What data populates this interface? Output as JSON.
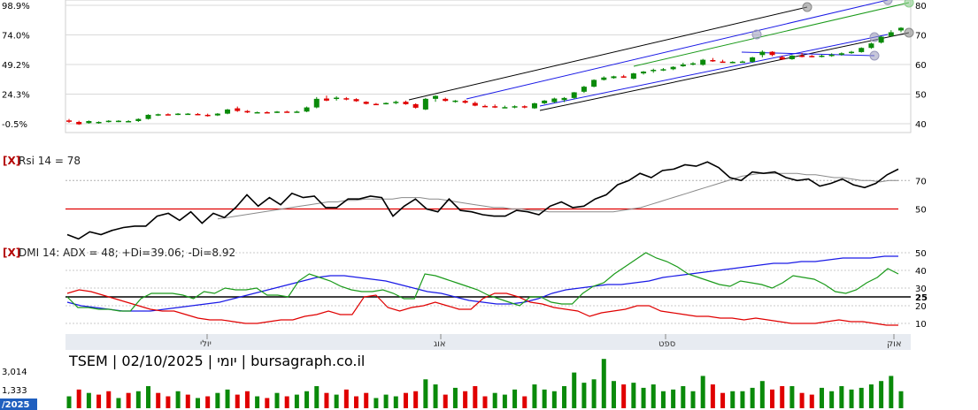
{
  "chart_data": [
    {
      "type": "candlestick",
      "title": "",
      "left_ticks": [
        "98.9%",
        "74.0%",
        "49.2%",
        "24.3%",
        "-0.5%"
      ],
      "right_ticks": [
        80,
        70,
        60,
        50,
        40
      ],
      "ylim": [
        38,
        82
      ],
      "candles": [
        [
          41.1,
          41.6,
          40.3,
          40.8
        ],
        [
          40.6,
          41.0,
          39.6,
          39.8
        ],
        [
          40.2,
          41.1,
          40.0,
          40.9
        ],
        [
          40.4,
          40.8,
          40.0,
          40.6
        ],
        [
          40.6,
          41.2,
          40.4,
          41.0
        ],
        [
          40.8,
          41.2,
          40.5,
          41.0
        ],
        [
          40.8,
          41.2,
          40.6,
          40.9
        ],
        [
          40.9,
          41.8,
          40.6,
          41.6
        ],
        [
          41.6,
          43.2,
          41.4,
          43.0
        ],
        [
          43.0,
          43.4,
          42.6,
          43.2
        ],
        [
          43.2,
          43.5,
          42.9,
          43.1
        ],
        [
          43.2,
          43.6,
          42.9,
          43.4
        ],
        [
          43.3,
          43.6,
          43.0,
          43.4
        ],
        [
          43.3,
          43.6,
          42.9,
          43.1
        ],
        [
          43.0,
          43.4,
          42.4,
          42.8
        ],
        [
          42.8,
          43.6,
          42.6,
          43.4
        ],
        [
          43.4,
          45.0,
          43.2,
          44.8
        ],
        [
          45.2,
          45.8,
          44.0,
          44.3
        ],
        [
          44.3,
          44.6,
          43.6,
          43.8
        ],
        [
          43.8,
          44.1,
          43.6,
          43.9
        ],
        [
          43.9,
          44.2,
          43.6,
          43.8
        ],
        [
          43.8,
          44.3,
          43.6,
          44.1
        ],
        [
          44.1,
          44.4,
          43.8,
          44.0
        ],
        [
          44.0,
          44.4,
          43.7,
          44.1
        ],
        [
          44.1,
          45.8,
          43.9,
          45.5
        ],
        [
          45.5,
          49.0,
          45.2,
          48.4
        ],
        [
          48.5,
          49.5,
          47.6,
          47.8
        ],
        [
          48.4,
          49.3,
          47.8,
          48.8
        ],
        [
          48.6,
          49.0,
          47.9,
          48.3
        ],
        [
          48.3,
          48.6,
          47.4,
          47.6
        ],
        [
          47.4,
          47.6,
          46.5,
          46.7
        ],
        [
          46.7,
          47.0,
          46.3,
          46.6
        ],
        [
          46.7,
          47.2,
          46.5,
          47.0
        ],
        [
          47.0,
          47.8,
          46.6,
          47.4
        ],
        [
          47.4,
          47.8,
          46.4,
          46.6
        ],
        [
          46.6,
          46.9,
          45.1,
          45.4
        ],
        [
          44.8,
          48.7,
          44.6,
          48.4
        ],
        [
          48.4,
          49.6,
          47.4,
          49.4
        ],
        [
          48.4,
          48.8,
          47.5,
          47.7
        ],
        [
          47.7,
          48.0,
          47.1,
          47.8
        ],
        [
          47.7,
          48.1,
          46.8,
          47.1
        ],
        [
          47.0,
          47.5,
          45.9,
          46.1
        ],
        [
          46.0,
          46.4,
          45.6,
          45.9
        ],
        [
          45.9,
          46.5,
          45.3,
          45.6
        ],
        [
          45.6,
          46.1,
          45.3,
          45.6
        ],
        [
          45.6,
          46.2,
          45.2,
          45.9
        ],
        [
          45.9,
          46.2,
          45.2,
          45.5
        ],
        [
          45.2,
          47.1,
          45.0,
          46.9
        ],
        [
          46.9,
          48.0,
          46.6,
          47.8
        ],
        [
          47.3,
          48.8,
          47.0,
          48.5
        ],
        [
          48.0,
          49.0,
          47.3,
          48.7
        ],
        [
          48.7,
          50.7,
          48.4,
          50.6
        ],
        [
          50.8,
          52.8,
          50.4,
          52.5
        ],
        [
          52.5,
          55.0,
          52.3,
          54.8
        ],
        [
          54.8,
          56.0,
          54.6,
          55.6
        ],
        [
          55.4,
          56.2,
          55.2,
          56.0
        ],
        [
          56.0,
          56.5,
          55.6,
          55.8
        ],
        [
          55.2,
          57.2,
          55.0,
          57.0
        ],
        [
          57.0,
          57.8,
          56.6,
          57.6
        ],
        [
          57.8,
          58.6,
          57.2,
          58.2
        ],
        [
          58.2,
          58.8,
          57.8,
          58.4
        ],
        [
          58.4,
          59.4,
          58.1,
          59.2
        ],
        [
          59.4,
          60.6,
          59.2,
          60.0
        ],
        [
          60.0,
          60.8,
          59.7,
          60.4
        ],
        [
          59.9,
          61.9,
          59.6,
          61.6
        ],
        [
          61.5,
          62.2,
          60.9,
          61.1
        ],
        [
          61.0,
          61.6,
          60.6,
          60.8
        ],
        [
          60.8,
          61.1,
          60.4,
          60.9
        ],
        [
          60.9,
          61.3,
          60.6,
          61.0
        ],
        [
          60.9,
          62.6,
          60.6,
          62.4
        ],
        [
          63.2,
          64.8,
          62.4,
          64.3
        ],
        [
          64.3,
          64.5,
          62.8,
          63.2
        ],
        [
          62.5,
          63.0,
          61.5,
          61.7
        ],
        [
          61.8,
          63.2,
          61.6,
          63.0
        ],
        [
          63.0,
          63.9,
          62.4,
          62.8
        ],
        [
          62.9,
          63.2,
          62.4,
          62.6
        ],
        [
          62.7,
          63.3,
          62.4,
          63.0
        ],
        [
          62.9,
          63.8,
          62.6,
          63.3
        ],
        [
          63.3,
          64.1,
          63.0,
          63.8
        ],
        [
          63.9,
          64.6,
          63.6,
          64.3
        ],
        [
          64.2,
          65.8,
          64.0,
          65.6
        ],
        [
          65.6,
          67.4,
          65.3,
          67.1
        ],
        [
          67.4,
          69.6,
          67.1,
          69.4
        ],
        [
          69.6,
          71.6,
          69.4,
          70.9
        ],
        [
          71.5,
          72.6,
          70.9,
          72.4
        ]
      ],
      "volume": [
        {
          "v": 700,
          "up": true
        },
        {
          "v": 1100,
          "up": false
        },
        {
          "v": 900,
          "up": true
        },
        {
          "v": 800,
          "up": false
        },
        {
          "v": 1000,
          "up": false
        },
        {
          "v": 600,
          "up": true
        },
        {
          "v": 900,
          "up": false
        },
        {
          "v": 1000,
          "up": true
        },
        {
          "v": 1300,
          "up": true
        },
        {
          "v": 900,
          "up": false
        },
        {
          "v": 700,
          "up": false
        },
        {
          "v": 1000,
          "up": true
        },
        {
          "v": 800,
          "up": false
        },
        {
          "v": 600,
          "up": true
        },
        {
          "v": 700,
          "up": false
        },
        {
          "v": 900,
          "up": true
        },
        {
          "v": 1100,
          "up": true
        },
        {
          "v": 800,
          "up": false
        },
        {
          "v": 1000,
          "up": false
        },
        {
          "v": 700,
          "up": true
        },
        {
          "v": 600,
          "up": false
        },
        {
          "v": 900,
          "up": true
        },
        {
          "v": 700,
          "up": false
        },
        {
          "v": 800,
          "up": true
        },
        {
          "v": 1000,
          "up": true
        },
        {
          "v": 1300,
          "up": true
        },
        {
          "v": 900,
          "up": false
        },
        {
          "v": 800,
          "up": true
        },
        {
          "v": 1100,
          "up": false
        },
        {
          "v": 700,
          "up": false
        },
        {
          "v": 900,
          "up": false
        },
        {
          "v": 600,
          "up": true
        },
        {
          "v": 800,
          "up": true
        },
        {
          "v": 700,
          "up": true
        },
        {
          "v": 900,
          "up": false
        },
        {
          "v": 1000,
          "up": false
        },
        {
          "v": 1700,
          "up": true
        },
        {
          "v": 1400,
          "up": true
        },
        {
          "v": 800,
          "up": false
        },
        {
          "v": 1200,
          "up": true
        },
        {
          "v": 1000,
          "up": false
        },
        {
          "v": 1300,
          "up": false
        },
        {
          "v": 700,
          "up": false
        },
        {
          "v": 900,
          "up": true
        },
        {
          "v": 800,
          "up": true
        },
        {
          "v": 1100,
          "up": true
        },
        {
          "v": 700,
          "up": false
        },
        {
          "v": 1400,
          "up": true
        },
        {
          "v": 1100,
          "up": true
        },
        {
          "v": 1000,
          "up": true
        },
        {
          "v": 1300,
          "up": true
        },
        {
          "v": 2100,
          "up": true
        },
        {
          "v": 1500,
          "up": true
        },
        {
          "v": 1700,
          "up": true
        },
        {
          "v": 2900,
          "up": true
        },
        {
          "v": 1600,
          "up": true
        },
        {
          "v": 1400,
          "up": false
        },
        {
          "v": 1500,
          "up": true
        },
        {
          "v": 1200,
          "up": true
        },
        {
          "v": 1400,
          "up": true
        },
        {
          "v": 1000,
          "up": true
        },
        {
          "v": 1100,
          "up": true
        },
        {
          "v": 1300,
          "up": true
        },
        {
          "v": 1000,
          "up": true
        },
        {
          "v": 1900,
          "up": true
        },
        {
          "v": 1400,
          "up": false
        },
        {
          "v": 900,
          "up": false
        },
        {
          "v": 1000,
          "up": true
        },
        {
          "v": 1000,
          "up": true
        },
        {
          "v": 1200,
          "up": true
        },
        {
          "v": 1600,
          "up": true
        },
        {
          "v": 1100,
          "up": false
        },
        {
          "v": 1300,
          "up": false
        },
        {
          "v": 1300,
          "up": true
        },
        {
          "v": 900,
          "up": false
        },
        {
          "v": 800,
          "up": false
        },
        {
          "v": 1200,
          "up": true
        },
        {
          "v": 1000,
          "up": true
        },
        {
          "v": 1300,
          "up": true
        },
        {
          "v": 1100,
          "up": true
        },
        {
          "v": 1200,
          "up": true
        },
        {
          "v": 1400,
          "up": true
        },
        {
          "v": 1600,
          "up": true
        },
        {
          "v": 1900,
          "up": true
        },
        {
          "v": 1000,
          "up": true
        }
      ],
      "colors": {
        "up": "#0a8a0a",
        "down": "#e00000"
      }
    },
    {
      "type": "line",
      "label": "Rsi 14 = 78",
      "right_ticks": [
        70,
        50
      ],
      "ylim": [
        28,
        90
      ],
      "rsi": [
        32,
        29,
        34,
        32,
        35,
        37,
        38,
        38,
        45,
        47,
        42,
        48,
        40,
        47,
        44,
        51,
        60,
        52,
        58,
        53,
        61,
        58,
        59,
        51,
        51,
        57,
        57,
        59,
        58,
        45,
        52,
        57,
        50,
        48,
        57,
        49,
        48,
        46,
        45,
        45,
        49,
        48,
        46,
        52,
        55,
        51,
        52,
        57,
        60,
        67,
        70,
        75,
        72,
        77,
        78,
        81,
        80,
        83,
        79,
        72,
        70,
        76,
        75,
        76,
        72,
        70,
        71,
        66,
        68,
        71,
        67,
        65,
        68,
        74,
        78
      ],
      "signal": [
        43,
        44,
        45,
        46,
        47,
        48,
        49,
        50,
        51,
        52,
        53,
        54,
        55,
        55,
        56,
        56,
        57,
        57,
        57,
        57,
        58,
        58,
        58,
        57,
        57,
        56,
        55,
        54,
        53,
        52,
        51,
        51,
        50,
        50,
        49,
        49,
        48,
        48,
        48,
        48,
        48,
        48,
        48,
        48,
        49,
        50,
        51,
        53,
        55,
        57,
        59,
        61,
        63,
        65,
        67,
        69,
        71,
        73,
        74,
        75,
        75,
        75,
        75,
        75,
        74,
        74,
        73,
        72,
        72,
        71,
        70,
        70,
        69,
        70,
        70
      ],
      "overbought": 70,
      "oversold": 50,
      "x_labels": [
        "יולי",
        "אוג",
        "ספט",
        "אוק"
      ]
    },
    {
      "type": "line",
      "label": "DMI 14: ADX = 48; +Di=39.06; -Di=8.92",
      "right_ticks": [
        50,
        40,
        30,
        25,
        20,
        10
      ],
      "ylim": [
        5,
        55
      ],
      "plus_di": [
        25,
        19,
        19,
        18,
        18,
        17,
        17,
        24,
        27,
        27,
        27,
        26,
        24,
        28,
        27,
        30,
        29,
        29,
        30,
        26,
        26,
        25,
        34,
        38,
        36,
        34,
        31,
        29,
        28,
        28,
        29,
        27,
        24,
        24,
        38,
        37,
        35,
        33,
        31,
        29,
        26,
        24,
        22,
        20,
        25,
        25,
        22,
        21,
        21,
        27,
        31,
        33,
        38,
        42,
        46,
        50,
        47,
        45,
        42,
        38,
        36,
        34,
        32,
        31,
        34,
        33,
        32,
        30,
        33,
        37,
        36,
        35,
        32,
        28,
        27,
        29,
        33,
        36,
        41,
        38
      ],
      "minus_di": [
        27,
        29,
        28,
        26,
        24,
        22,
        20,
        18,
        17,
        17,
        15,
        13,
        12,
        12,
        11,
        10,
        10,
        11,
        12,
        12,
        14,
        15,
        17,
        15,
        15,
        25,
        26,
        19,
        17,
        19,
        20,
        22,
        20,
        18,
        18,
        24,
        27,
        27,
        25,
        22,
        21,
        19,
        18,
        17,
        14,
        16,
        17,
        18,
        20,
        20,
        17,
        16,
        15,
        14,
        14,
        13,
        13,
        12,
        13,
        12,
        11,
        10,
        10,
        10,
        11,
        12,
        11,
        11,
        10,
        9,
        9
      ],
      "adx": [
        22,
        20,
        19,
        18,
        17,
        17,
        17,
        18,
        19,
        20,
        21,
        22,
        24,
        26,
        28,
        30,
        32,
        34,
        36,
        37,
        37,
        36,
        35,
        34,
        32,
        30,
        28,
        27,
        25,
        23,
        22,
        21,
        21,
        22,
        24,
        27,
        29,
        30,
        31,
        32,
        32,
        33,
        34,
        36,
        37,
        38,
        39,
        40,
        41,
        42,
        43,
        44,
        44,
        45,
        45,
        46,
        47,
        47,
        47,
        48,
        48
      ],
      "reference_lines": [
        25
      ]
    }
  ],
  "caption": "TSEM | 02/10/2025 | יומי | bursagraph.co.il",
  "volume_ticks": [
    "3,014",
    "1,333"
  ],
  "year_label": "2025",
  "close_marker": "[X]"
}
